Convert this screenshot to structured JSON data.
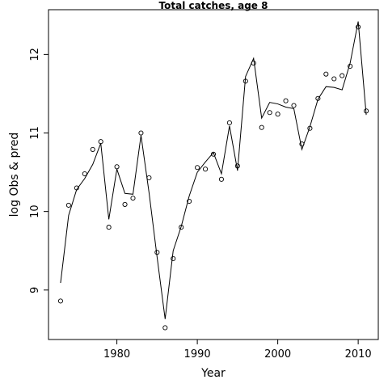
{
  "chart_data": {
    "type": "scatter",
    "title": "Total catches, age 8",
    "xlabel": "Year",
    "ylabel": "log Obs & pred",
    "xlim": [
      1971.5,
      2012.5
    ],
    "ylim": [
      8.37,
      12.57
    ],
    "x_ticks": [
      1980,
      1990,
      2000,
      2010
    ],
    "y_ticks": [
      9,
      10,
      11,
      12
    ],
    "grid": false,
    "series": [
      {
        "style": "points",
        "x": [
          1973,
          1974,
          1975,
          1976,
          1977,
          1978,
          1979,
          1980,
          1981,
          1982,
          1983,
          1984,
          1985,
          1986,
          1987,
          1988,
          1989,
          1990,
          1991,
          1992,
          1993,
          1994,
          1995,
          1996,
          1997,
          1998,
          1999,
          2000,
          2001,
          2002,
          2003,
          2004,
          2005,
          2006,
          2007,
          2008,
          2009,
          2010,
          2011
        ],
        "y": [
          8.86,
          10.08,
          10.3,
          10.48,
          10.79,
          10.89,
          9.8,
          10.57,
          10.09,
          10.17,
          11.0,
          10.43,
          9.48,
          8.52,
          9.4,
          9.8,
          10.13,
          10.56,
          10.54,
          10.73,
          10.41,
          11.13,
          10.58,
          11.66,
          11.89,
          11.07,
          11.26,
          11.24,
          11.41,
          11.35,
          10.86,
          11.06,
          11.44,
          11.75,
          11.69,
          11.73,
          11.85,
          12.35,
          11.28
        ]
      },
      {
        "style": "line",
        "x": [
          1973,
          1974,
          1975,
          1976,
          1977,
          1978,
          1979,
          1980,
          1981,
          1982,
          1983,
          1984,
          1985,
          1986,
          1987,
          1988,
          1989,
          1990,
          1991,
          1992,
          1993,
          1994,
          1995,
          1996,
          1997,
          1998,
          1999,
          2000,
          2001,
          2002,
          2003,
          2004,
          2005,
          2006,
          2007,
          2008,
          2009,
          2010,
          2011
        ],
        "y": [
          9.09,
          9.95,
          10.28,
          10.42,
          10.6,
          10.87,
          9.9,
          10.54,
          10.23,
          10.22,
          10.97,
          10.24,
          9.42,
          8.63,
          9.5,
          9.81,
          10.2,
          10.5,
          10.63,
          10.75,
          10.48,
          11.09,
          10.52,
          11.72,
          11.95,
          11.19,
          11.39,
          11.37,
          11.33,
          11.31,
          10.79,
          11.08,
          11.43,
          11.59,
          11.58,
          11.55,
          11.89,
          12.42,
          11.23
        ]
      }
    ]
  }
}
